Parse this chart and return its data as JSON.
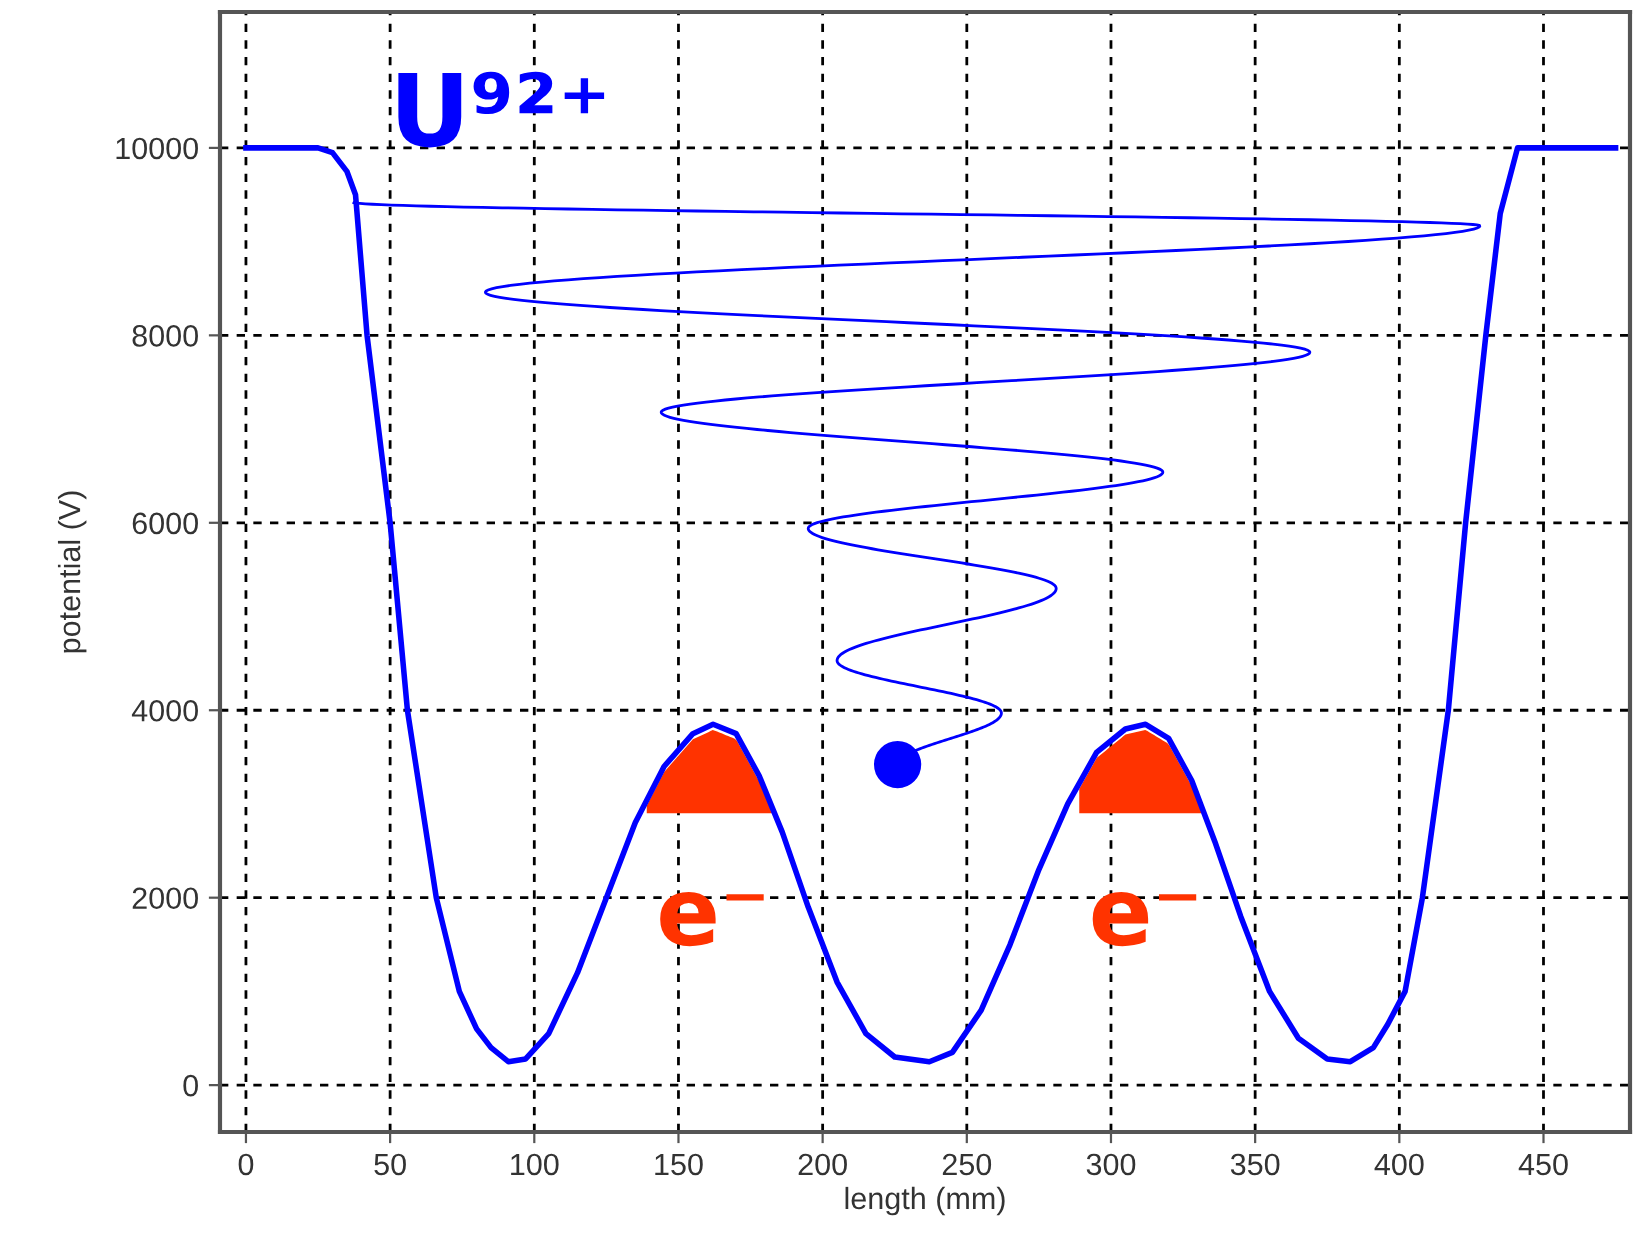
{
  "chart_data": {
    "type": "line",
    "xlabel": "length (mm)",
    "ylabel": "potential (V)",
    "x": [
      0,
      25,
      30,
      35,
      38,
      42,
      50,
      56,
      66,
      74,
      80,
      85,
      91,
      97,
      105,
      115,
      125,
      135,
      145,
      155,
      162,
      170,
      178,
      186,
      195,
      205,
      215,
      225,
      237,
      245,
      255,
      265,
      275,
      285,
      295,
      305,
      312,
      320,
      328,
      336,
      345,
      355,
      365,
      375,
      383,
      391,
      396,
      402,
      408,
      417,
      423,
      430,
      435,
      441,
      450,
      475
    ],
    "series": [
      {
        "color": "#0000ff",
        "values": [
          10000,
          10000,
          9950,
          9750,
          9500,
          8000,
          6000,
          4000,
          2000,
          1000,
          600,
          400,
          250,
          280,
          550,
          1200,
          2000,
          2800,
          3400,
          3750,
          3850,
          3750,
          3300,
          2700,
          1900,
          1100,
          550,
          300,
          250,
          350,
          800,
          1500,
          2300,
          3000,
          3550,
          3800,
          3850,
          3700,
          3250,
          2600,
          1800,
          1000,
          500,
          280,
          250,
          400,
          650,
          1000,
          2000,
          4000,
          6000,
          8000,
          9300,
          10000,
          10000,
          10000
        ]
      }
    ],
    "xlim": [
      -9,
      480
    ],
    "ylim": [
      -500,
      11450
    ],
    "xticks": [
      0,
      50,
      100,
      150,
      200,
      250,
      300,
      350,
      400,
      450
    ],
    "yticks": [
      0,
      2000,
      4000,
      6000,
      8000,
      10000
    ],
    "grid": true,
    "line_style": "solid",
    "marker": "none",
    "annotations": [
      "U⁹²⁺",
      {
        "text": "e⁻",
        "x": 162,
        "y": 3850
      },
      {
        "text": "e⁻",
        "x": 312,
        "y": 3850
      }
    ]
  }
}
